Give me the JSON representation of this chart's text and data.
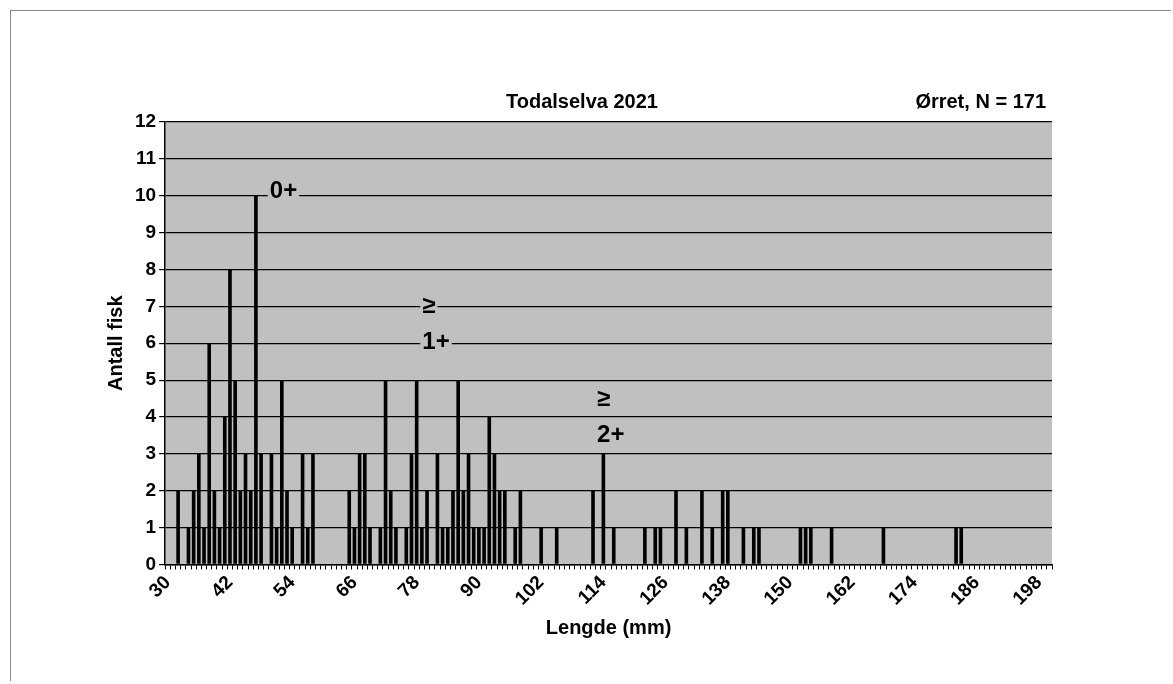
{
  "chart_data": {
    "type": "bar",
    "title": "Todalselva 2021",
    "subtitle": "Ørret, N = 171",
    "xlabel": "Lengde (mm)",
    "ylabel": "Antall fisk",
    "categories": [
      "30",
      null,
      null,
      null,
      null,
      null,
      null,
      null,
      null,
      null,
      null,
      null,
      "42",
      null,
      null,
      null,
      null,
      null,
      null,
      null,
      null,
      null,
      null,
      null,
      "54",
      null,
      null,
      null,
      null,
      null,
      null,
      null,
      null,
      null,
      null,
      null,
      "66",
      null,
      null,
      null,
      null,
      null,
      null,
      null,
      null,
      null,
      null,
      null,
      "78",
      null,
      null,
      null,
      null,
      null,
      null,
      null,
      null,
      null,
      null,
      null,
      "90",
      null,
      null,
      null,
      null,
      null,
      null,
      null,
      null,
      null,
      null,
      null,
      "102",
      null,
      null,
      null,
      null,
      null,
      null,
      null,
      null,
      null,
      null,
      null,
      "114",
      null,
      null,
      null,
      null,
      null,
      null,
      null,
      null,
      null,
      null,
      null,
      "126",
      null,
      null,
      null,
      null,
      null,
      null,
      null,
      null,
      null,
      null,
      null,
      "138",
      null,
      null,
      null,
      null,
      null,
      null,
      null,
      null,
      null,
      null,
      null,
      "150",
      null,
      null,
      null,
      null,
      null,
      null,
      null,
      null,
      null,
      null,
      null,
      "162",
      null,
      null,
      null,
      null,
      null,
      null,
      null,
      null,
      null,
      null,
      null,
      "174",
      null,
      null,
      null,
      null,
      null,
      null,
      null,
      null,
      null,
      null,
      null,
      "186",
      null,
      null,
      null,
      null,
      null,
      null,
      null,
      null,
      null,
      null,
      null,
      "198",
      null,
      null
    ],
    "values": [
      0,
      0,
      2,
      0,
      1,
      2,
      3,
      1,
      6,
      2,
      1,
      4,
      8,
      5,
      2,
      3,
      2,
      10,
      3,
      0,
      3,
      1,
      5,
      2,
      1,
      0,
      3,
      1,
      3,
      0,
      0,
      0,
      0,
      0,
      0,
      2,
      1,
      3,
      3,
      1,
      0,
      1,
      5,
      2,
      1,
      0,
      1,
      3,
      5,
      1,
      2,
      0,
      3,
      1,
      1,
      2,
      5,
      2,
      3,
      1,
      1,
      1,
      4,
      3,
      2,
      2,
      0,
      1,
      2,
      0,
      0,
      0,
      1,
      0,
      0,
      1,
      0,
      0,
      0,
      0,
      0,
      0,
      2,
      0,
      3,
      0,
      1,
      0,
      0,
      0,
      0,
      0,
      1,
      0,
      1,
      1,
      0,
      0,
      2,
      0,
      1,
      0,
      0,
      2,
      0,
      1,
      0,
      2,
      2,
      0,
      0,
      1,
      0,
      1,
      1,
      0,
      0,
      0,
      0,
      0,
      0,
      0,
      1,
      1,
      1,
      0,
      0,
      0,
      1,
      0,
      0,
      0,
      0,
      0,
      0,
      0,
      0,
      0,
      1,
      0,
      0,
      0,
      0,
      0,
      0,
      0,
      0,
      0,
      0,
      0,
      0,
      0,
      1,
      1,
      0,
      0,
      0,
      0,
      0,
      0,
      0,
      0,
      0,
      0,
      0,
      0,
      0,
      0,
      0,
      0,
      0
    ],
    "color": "#000000",
    "ylim": [
      0,
      12
    ],
    "yticks": [
      0,
      1,
      2,
      3,
      4,
      5,
      6,
      7,
      8,
      9,
      10,
      11,
      12
    ],
    "grid": "y",
    "annotations": [
      "0+",
      "≥ 1+",
      "≥ 2+"
    ]
  }
}
